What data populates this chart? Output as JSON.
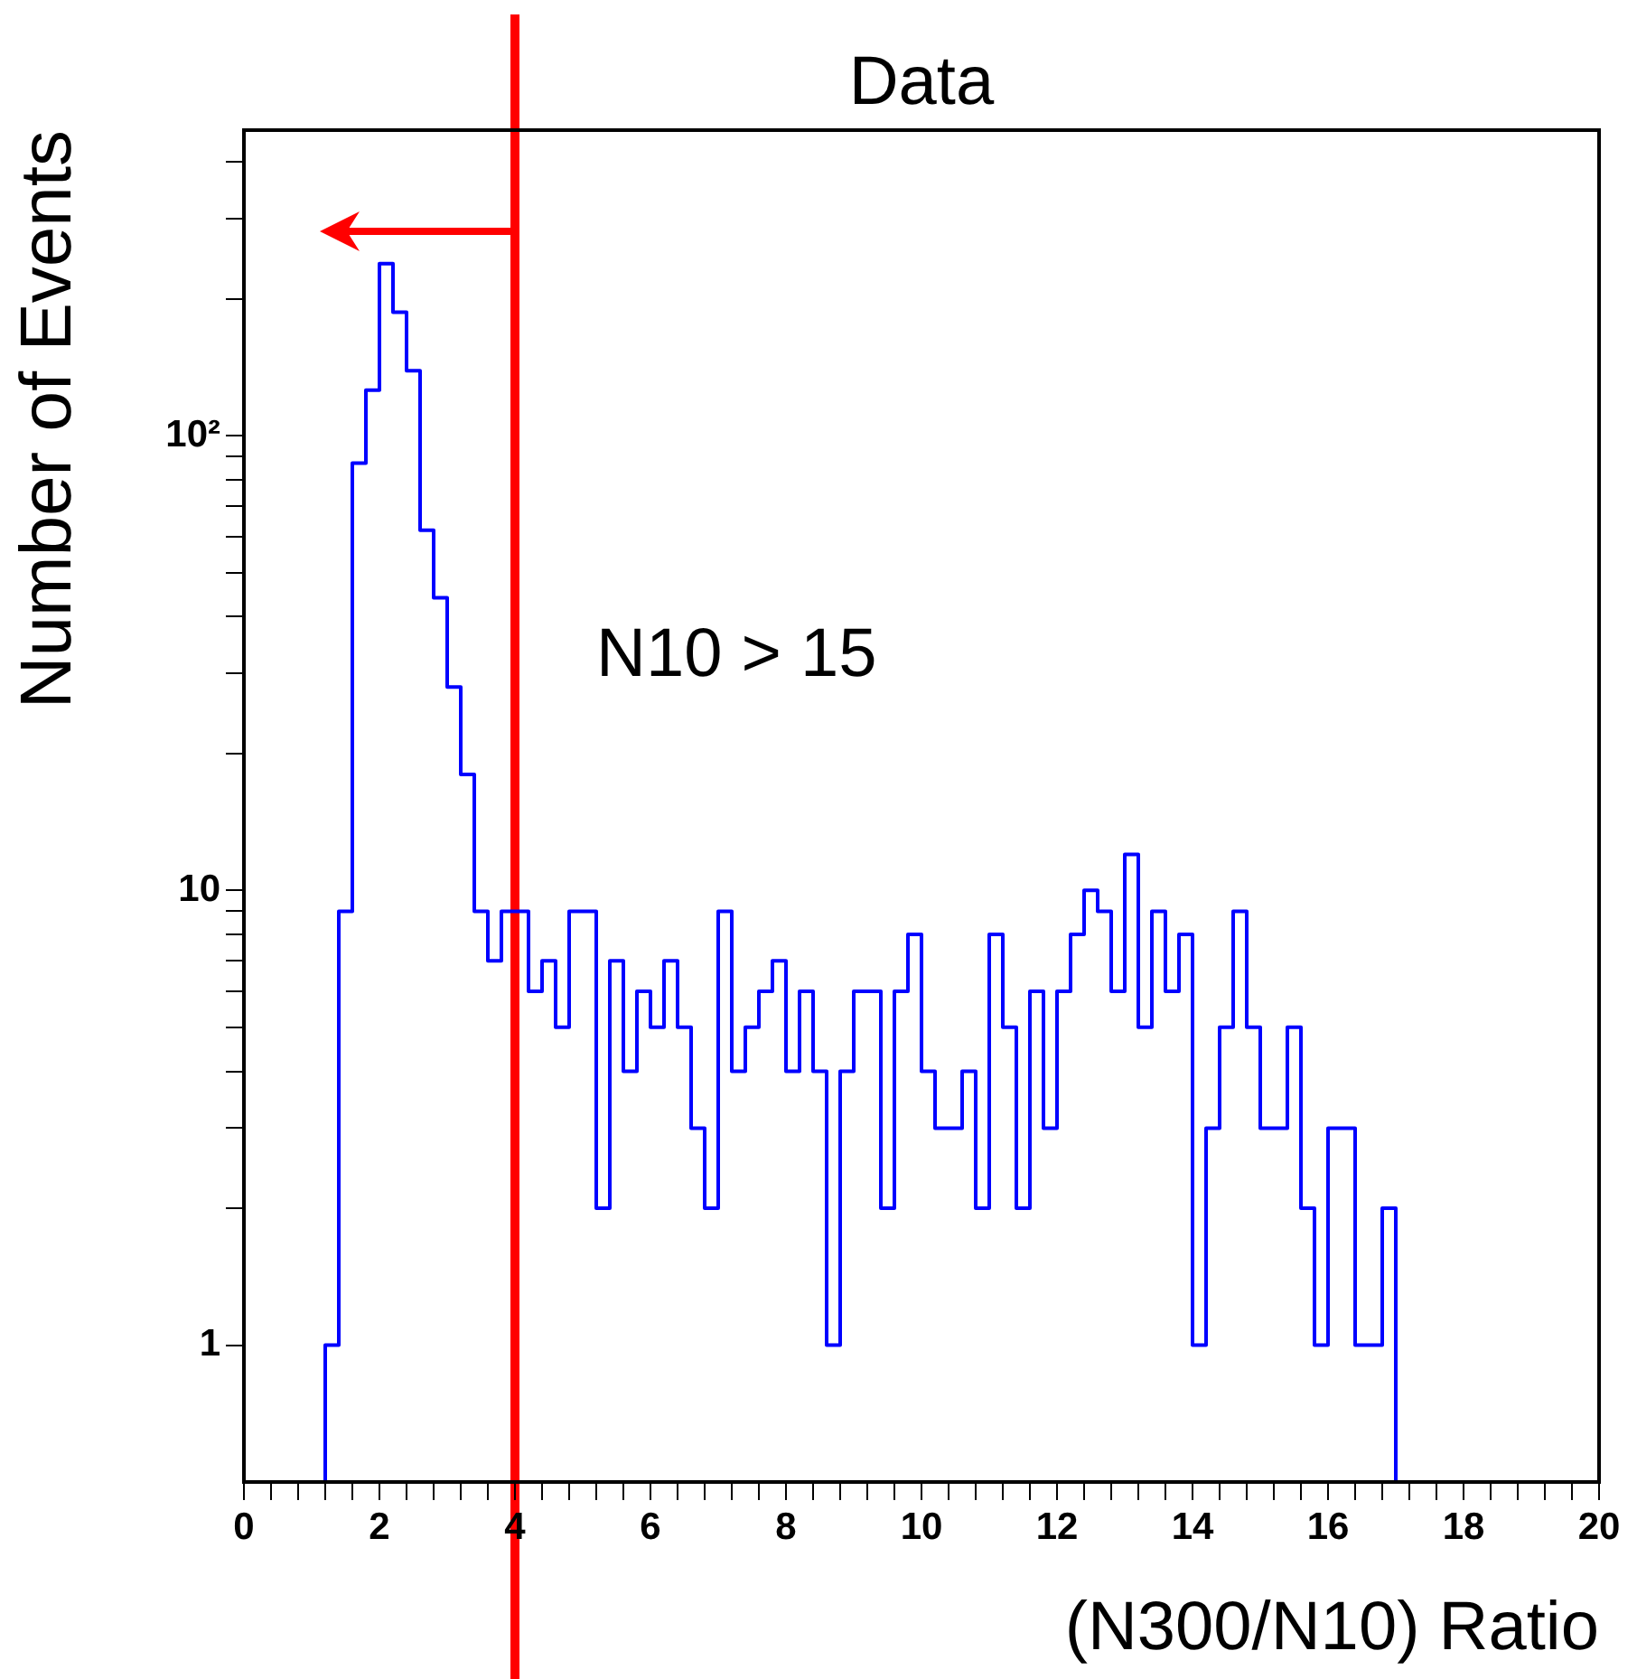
{
  "chart_data": {
    "type": "histogram",
    "title": "Data",
    "xlabel": "(N300/N10) Ratio",
    "ylabel": "Number of Events",
    "annotations": [
      "N10 > 15"
    ],
    "bins": [
      0,
      0.2,
      0.4,
      0.6,
      0.8,
      1,
      1.2,
      1.4,
      1.6,
      1.8,
      2,
      2.2,
      2.4,
      2.6,
      2.8,
      3,
      3.2,
      3.4,
      3.6,
      3.8,
      4,
      4.2,
      4.4,
      4.6,
      4.8,
      5,
      5.2,
      5.4,
      5.6,
      5.8,
      6,
      6.2,
      6.4,
      6.6,
      6.8,
      7,
      7.2,
      7.4,
      7.6,
      7.8,
      8,
      8.2,
      8.4,
      8.6,
      8.8,
      9,
      9.2,
      9.4,
      9.6,
      9.8,
      10,
      10.2,
      10.4,
      10.6,
      10.8,
      11,
      11.2,
      11.4,
      11.6,
      11.8,
      12,
      12.2,
      12.4,
      12.6,
      12.8,
      13,
      13.2,
      13.4,
      13.6,
      13.8,
      14,
      14.2,
      14.4,
      14.6,
      14.8,
      15,
      15.2,
      15.4,
      15.6,
      15.8,
      16,
      16.2,
      16.4,
      16.6,
      16.8,
      17,
      17.2,
      17.4,
      17.6,
      17.8,
      18,
      18.2,
      18.4,
      18.6,
      18.8,
      19,
      19.2,
      19.4,
      19.6,
      19.8,
      20
    ],
    "values": [
      null,
      null,
      null,
      null,
      null,
      null,
      1,
      9,
      87,
      126,
      239,
      187,
      139,
      62,
      44,
      28,
      18,
      9,
      7,
      9,
      9,
      6,
      7,
      5,
      9,
      9,
      2,
      7,
      4,
      6,
      5,
      7,
      5,
      3,
      2,
      9,
      4,
      5,
      6,
      7,
      4,
      6,
      4,
      1,
      4,
      6,
      6,
      2,
      6,
      8,
      4,
      3,
      3,
      4,
      2,
      8,
      5,
      2,
      6,
      3,
      6,
      8,
      10,
      9,
      6,
      12,
      5,
      9,
      6,
      8,
      1,
      3,
      5,
      9,
      5,
      3,
      3,
      5,
      2,
      1,
      3,
      3,
      1,
      1,
      2,
      null,
      null,
      null,
      null,
      null,
      null,
      null,
      null,
      null,
      null,
      null,
      null,
      null,
      null,
      null
    ],
    "color": "#0000ff",
    "xlim": [
      0,
      20
    ],
    "xticks": [
      0,
      {
        "value": 0.4,
        "label": null
      },
      {
        "value": 0.8,
        "label": null
      },
      {
        "value": 1.2,
        "label": null
      },
      {
        "value": 1.6,
        "label": null
      },
      2,
      {
        "value": 2.4,
        "label": null
      },
      {
        "value": 2.8,
        "label": null
      },
      {
        "value": 3.2,
        "label": null
      },
      {
        "value": 3.6,
        "label": null
      },
      4,
      {
        "value": 4.4,
        "label": null
      },
      {
        "value": 4.8,
        "label": null
      },
      {
        "value": 5.2,
        "label": null
      },
      {
        "value": 5.6,
        "label": null
      },
      6,
      {
        "value": 6.4,
        "label": null
      },
      {
        "value": 6.8,
        "label": null
      },
      {
        "value": 7.2,
        "label": null
      },
      {
        "value": 7.6,
        "label": null
      },
      8,
      {
        "value": 8.4,
        "label": null
      },
      {
        "value": 8.8,
        "label": null
      },
      {
        "value": 9.2,
        "label": null
      },
      {
        "value": 9.6,
        "label": null
      },
      10,
      {
        "value": 10.4,
        "label": null
      },
      {
        "value": 10.8,
        "label": null
      },
      {
        "value": 11.2,
        "label": null
      },
      {
        "value": 11.6,
        "label": null
      },
      12,
      {
        "value": 12.4,
        "label": null
      },
      {
        "value": 12.8,
        "label": null
      },
      {
        "value": 13.2,
        "label": null
      },
      {
        "value": 13.6,
        "label": null
      },
      14,
      {
        "value": 14.4,
        "label": null
      },
      {
        "value": 14.8,
        "label": null
      },
      {
        "value": 15.2,
        "label": null
      },
      {
        "value": 15.6,
        "label": null
      },
      16,
      {
        "value": 16.4,
        "label": null
      },
      {
        "value": 16.8,
        "label": null
      },
      {
        "value": 17.2,
        "label": null
      },
      {
        "value": 17.6,
        "label": null
      },
      18,
      {
        "value": 18.4,
        "label": null
      },
      {
        "value": 18.8,
        "label": null
      },
      {
        "value": 19.2,
        "label": null
      },
      {
        "value": 19.6,
        "label": null
      },
      20
    ],
    "ylim": [
      0.5,
      470
    ],
    "yticks": [
      1,
      {
        "value": 2,
        "label": null
      },
      {
        "value": 3,
        "label": null
      },
      {
        "value": 4,
        "label": null
      },
      {
        "value": 5,
        "label": null
      },
      {
        "value": 6,
        "label": null
      },
      {
        "value": 7,
        "label": null
      },
      {
        "value": 8,
        "label": null
      },
      {
        "value": 9,
        "label": null
      },
      10,
      {
        "value": 20,
        "label": null
      },
      {
        "value": 30,
        "label": null
      },
      {
        "value": 40,
        "label": null
      },
      {
        "value": 50,
        "label": null
      },
      {
        "value": 60,
        "label": null
      },
      {
        "value": 70,
        "label": null
      },
      {
        "value": 80,
        "label": null
      },
      {
        "value": 90,
        "label": null
      },
      {
        "value": 100,
        "label": "10²"
      },
      {
        "value": 200,
        "label": null
      },
      {
        "value": 300,
        "label": null
      },
      {
        "value": 400,
        "label": null
      }
    ],
    "log": "y",
    "ref_lines": [
      {
        "axis": "x",
        "value": 4,
        "color": "#ff0000"
      }
    ]
  }
}
